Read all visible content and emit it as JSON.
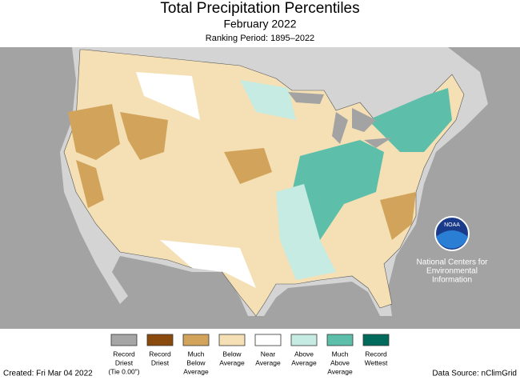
{
  "header": {
    "title": "Total Precipitation Percentiles",
    "subtitle": "February 2022",
    "ranking": "Ranking Period: 1895–2022"
  },
  "legend": [
    {
      "label": [
        "Record",
        "Driest",
        "(Tie 0.00\")"
      ],
      "color": "#a6a6a6"
    },
    {
      "label": [
        "Record",
        "Driest"
      ],
      "color": "#8a4a0e"
    },
    {
      "label": [
        "Much",
        "Below",
        "Average"
      ],
      "color": "#d2a35a"
    },
    {
      "label": [
        "Below",
        "Average"
      ],
      "color": "#f4e0b4"
    },
    {
      "label": [
        "Near",
        "Average"
      ],
      "color": "#ffffff"
    },
    {
      "label": [
        "Above",
        "Average"
      ],
      "color": "#c5ebe2"
    },
    {
      "label": [
        "Much",
        "Above",
        "Average"
      ],
      "color": "#5dbfa9"
    },
    {
      "label": [
        "Record",
        "Wettest"
      ],
      "color": "#006b5c"
    }
  ],
  "logo": {
    "name": "NOAA",
    "org": [
      "National Centers for",
      "Environmental",
      "Information"
    ]
  },
  "footer": {
    "created": "Created: Fri Mar 04 2022",
    "source": "Data Source: nClimGrid"
  }
}
